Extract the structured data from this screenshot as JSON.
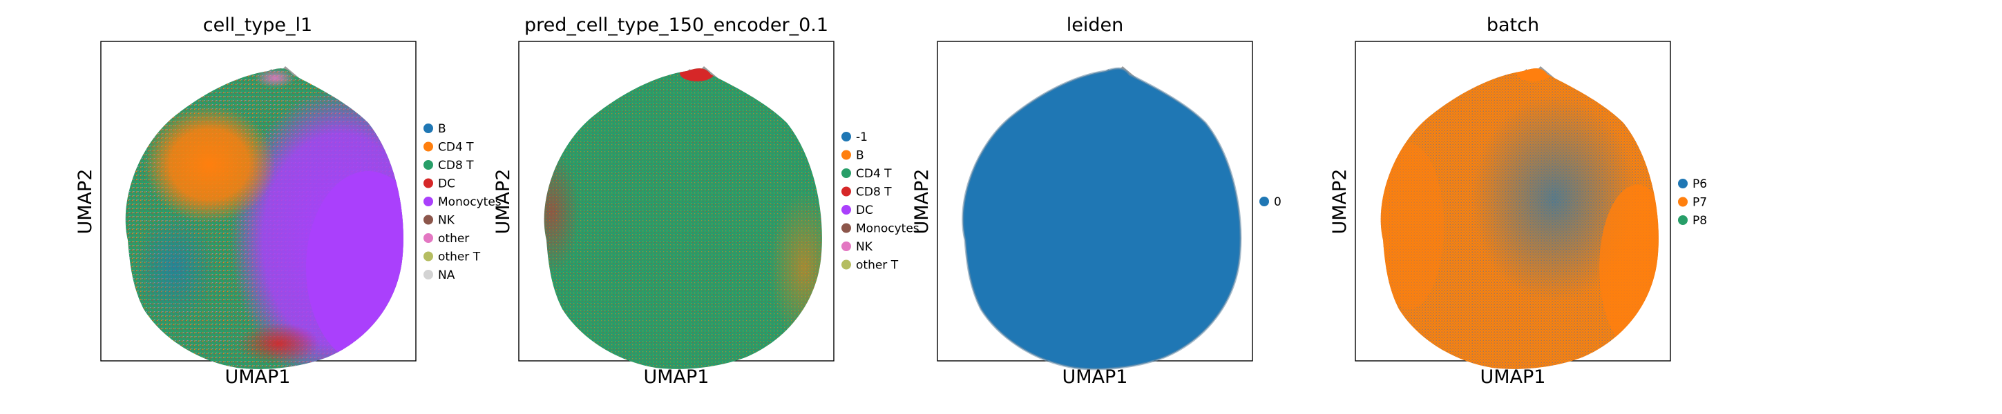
{
  "chart_data": [
    {
      "type": "scatter",
      "title": "cell_type_l1",
      "xlabel": "UMAP1",
      "ylabel": "UMAP2",
      "grid": false,
      "legend_position": "right",
      "legend": [
        {
          "label": "B",
          "color": "#1f77b4"
        },
        {
          "label": "CD4 T",
          "color": "#ff7f0e"
        },
        {
          "label": "CD8 T",
          "color": "#279e68"
        },
        {
          "label": "DC",
          "color": "#d62728"
        },
        {
          "label": "Monocytes",
          "color": "#aa40fc"
        },
        {
          "label": "NK",
          "color": "#8c564b"
        },
        {
          "label": "other",
          "color": "#e377c2"
        },
        {
          "label": "other T",
          "color": "#b5bd61"
        },
        {
          "label": "NA",
          "color": "#d3d3d3"
        }
      ]
    },
    {
      "type": "scatter",
      "title": "pred_cell_type_150_encoder_0.1",
      "xlabel": "UMAP1",
      "ylabel": "UMAP2",
      "grid": false,
      "legend_position": "right",
      "legend": [
        {
          "label": "-1",
          "color": "#1f77b4"
        },
        {
          "label": "B",
          "color": "#ff7f0e"
        },
        {
          "label": "CD4 T",
          "color": "#279e68"
        },
        {
          "label": "CD8 T",
          "color": "#d62728"
        },
        {
          "label": "DC",
          "color": "#aa40fc"
        },
        {
          "label": "Monocytes",
          "color": "#8c564b"
        },
        {
          "label": "NK",
          "color": "#e377c2"
        },
        {
          "label": "other T",
          "color": "#b5bd61"
        }
      ]
    },
    {
      "type": "scatter",
      "title": "leiden",
      "xlabel": "UMAP1",
      "ylabel": "UMAP2",
      "grid": false,
      "legend_position": "right",
      "legend": [
        {
          "label": "0",
          "color": "#1f77b4"
        }
      ]
    },
    {
      "type": "scatter",
      "title": "batch",
      "xlabel": "UMAP1",
      "ylabel": "UMAP2",
      "grid": false,
      "legend_position": "right",
      "legend": [
        {
          "label": "P6",
          "color": "#1f77b4"
        },
        {
          "label": "P7",
          "color": "#ff7f0e"
        },
        {
          "label": "P8",
          "color": "#279e68"
        }
      ]
    }
  ]
}
